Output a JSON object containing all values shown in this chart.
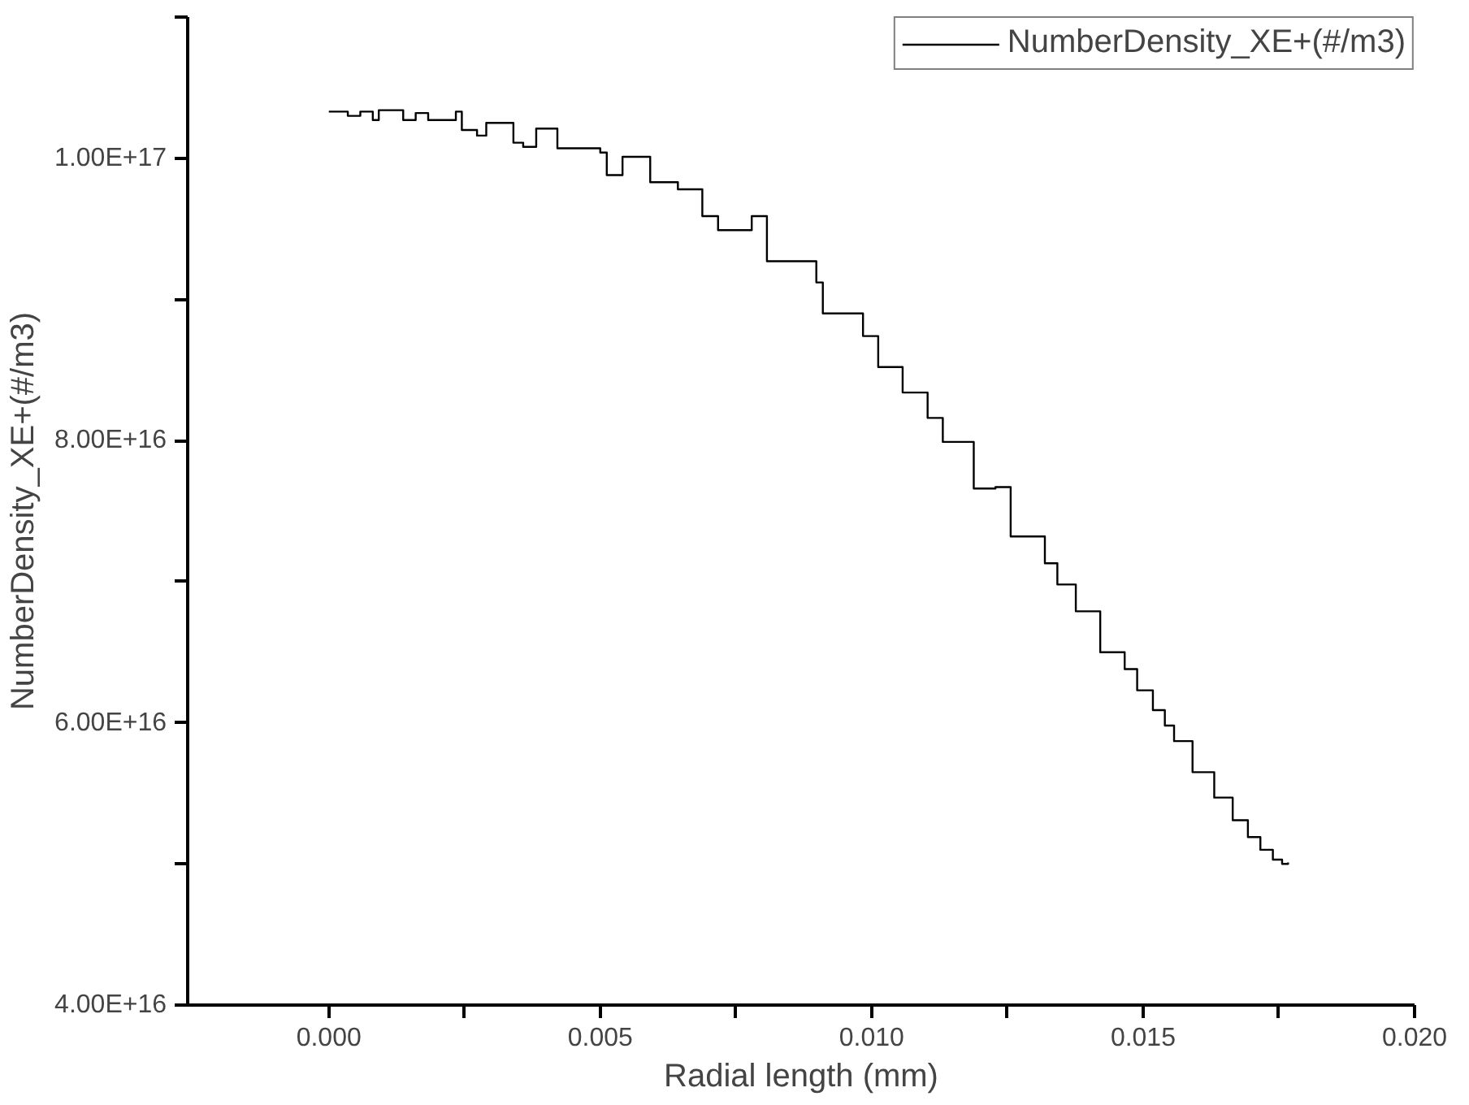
{
  "chart_data": {
    "type": "step",
    "xlabel": "Radial length (mm)",
    "ylabel": "NumberDensity_XE+(#/m3)",
    "legend": "top right",
    "grid": false,
    "line_style": "solid",
    "marker": "none",
    "xlim": [
      -0.0026,
      0.02
    ],
    "ylim": [
      4e+16,
      1.1e+17
    ],
    "xticks": [
      {
        "value": 0,
        "label": "0.000"
      },
      {
        "value": 0.0025,
        "label": null
      },
      {
        "value": 0.005,
        "label": "0.005"
      },
      {
        "value": 0.0075,
        "label": null
      },
      {
        "value": 0.01,
        "label": "0.010"
      },
      {
        "value": 0.0125,
        "label": null
      },
      {
        "value": 0.015,
        "label": "0.015"
      },
      {
        "value": 0.0175,
        "label": null
      },
      {
        "value": 0.02,
        "label": "0.020"
      }
    ],
    "yticks": [
      {
        "value": 4e+16,
        "label": "4.00E+16"
      },
      {
        "value": 5e+16,
        "label": null
      },
      {
        "value": 6e+16,
        "label": "6.00E+16"
      },
      {
        "value": 7e+16,
        "label": null
      },
      {
        "value": 8e+16,
        "label": "8.00E+16"
      },
      {
        "value": 9e+16,
        "label": null
      },
      {
        "value": 1e+17,
        "label": "1.00E+17"
      },
      {
        "value": 1.1e+17,
        "label": null
      }
    ],
    "series": [
      {
        "name": "NumberDensity_XE+(#/m3)",
        "color": "#000000",
        "x": [
          0,
          0.00035,
          0.00058,
          0.00081,
          0.00092,
          0.00137,
          0.0016,
          0.00183,
          0.00234,
          0.00245,
          0.00273,
          0.0029,
          0.0034,
          0.00358,
          0.00382,
          0.00421,
          0.005,
          0.00512,
          0.00541,
          0.00592,
          0.00643,
          0.00688,
          0.00717,
          0.00779,
          0.00807,
          0.00898,
          0.0091,
          0.00984,
          0.01012,
          0.01057,
          0.01103,
          0.01131,
          0.01188,
          0.01228,
          0.01256,
          0.01319,
          0.01342,
          0.01376,
          0.01421,
          0.01466,
          0.01489,
          0.01518,
          0.0154,
          0.01557,
          0.01591,
          0.01631,
          0.01665,
          0.01693,
          0.01716,
          0.01739,
          0.01756,
          0.01767
        ],
        "values": [
          1.033e+17,
          1.03e+17,
          1.033e+17,
          1.027e+17,
          1.034e+17,
          1.027e+17,
          1.032e+17,
          1.027e+17,
          1.033e+17,
          1.02e+17,
          1.016e+17,
          1.025e+17,
          1.011e+17,
          1.008e+17,
          1.021e+17,
          1.007e+17,
          1.004e+17,
          9.88e+16,
          1.001e+17,
          9.83e+16,
          9.78e+16,
          9.59e+16,
          9.49e+16,
          9.59e+16,
          9.27e+16,
          9.12e+16,
          8.9e+16,
          8.74e+16,
          8.52e+16,
          8.34e+16,
          8.16e+16,
          7.99e+16,
          7.66e+16,
          7.67e+16,
          7.32e+16,
          7.13e+16,
          6.98e+16,
          6.79e+16,
          6.5e+16,
          6.38e+16,
          6.23e+16,
          6.09e+16,
          5.98e+16,
          5.87e+16,
          5.65e+16,
          5.47e+16,
          5.31e+16,
          5.19e+16,
          5.1e+16,
          5.03e+16,
          5e+16,
          5.01e+16
        ]
      }
    ]
  }
}
